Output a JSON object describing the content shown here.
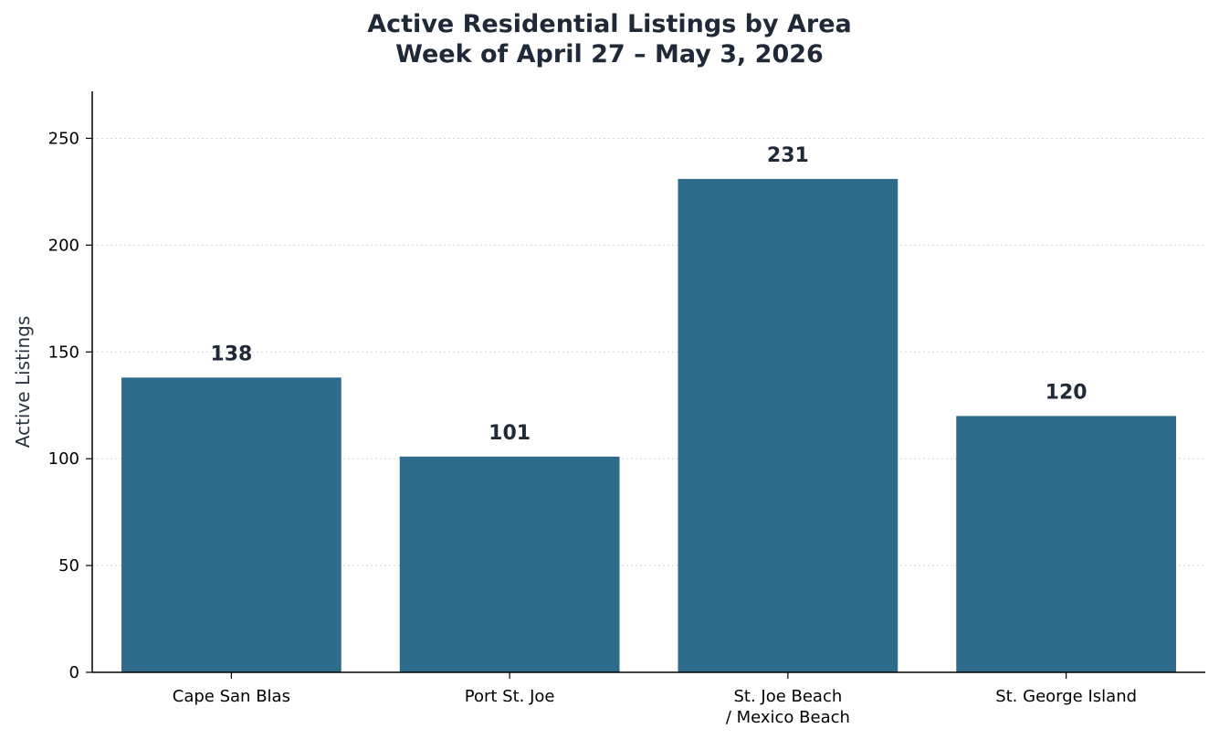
{
  "chart_data": {
    "type": "bar",
    "title": "Active Residential Listings by Area",
    "subtitle": "Week of April 27 – May 3, 2026",
    "xlabel": "",
    "ylabel": "Active Listings",
    "categories": [
      [
        "Cape San Blas"
      ],
      [
        "Port St. Joe"
      ],
      [
        "St. Joe Beach",
        "/ Mexico Beach"
      ],
      [
        "St. George Island"
      ]
    ],
    "values": [
      138,
      101,
      231,
      120
    ],
    "data_labels": [
      "138",
      "101",
      "231",
      "120"
    ],
    "ylim": [
      0,
      272
    ],
    "yticks": [
      0,
      50,
      100,
      150,
      200,
      250
    ],
    "grid": "horizontal dotted",
    "bar_color": "#2f6b8a",
    "text_color": "#1f2937"
  }
}
